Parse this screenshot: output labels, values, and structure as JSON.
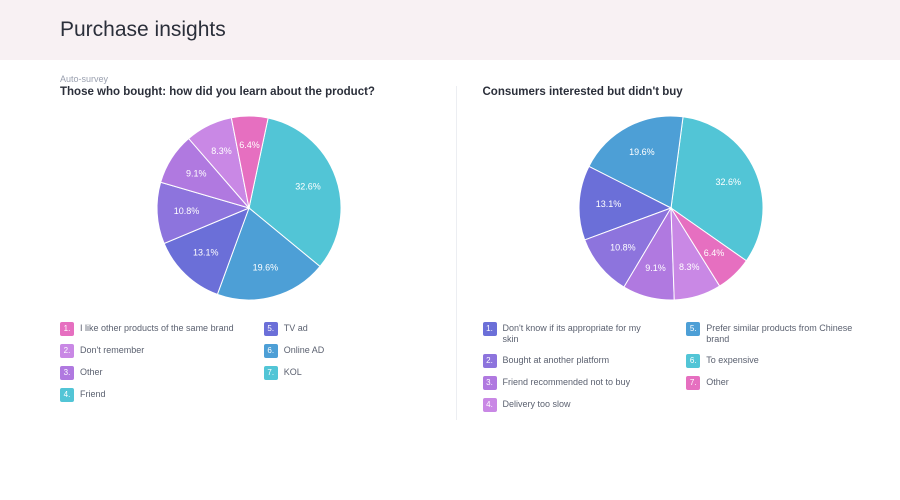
{
  "header": {
    "title": "Purchase insights"
  },
  "subtitle": "Auto-survey",
  "panels": [
    {
      "id": "bought",
      "title": "Those who bought: how did you learn about the product?",
      "pie": {
        "type": "pie",
        "radius": 92,
        "start_angle_deg": -78,
        "direction": "clockwise",
        "stroke": "#ffffff",
        "stroke_width": 1,
        "label_radius_factor": 0.68,
        "slices": [
          {
            "value": 32.6,
            "color": "#52c5d6",
            "label": "32.6%"
          },
          {
            "value": 19.6,
            "color": "#4d9fd6",
            "label": "19.6%"
          },
          {
            "value": 13.1,
            "color": "#6b6fd8",
            "label": "13.1%"
          },
          {
            "value": 10.8,
            "color": "#8d74dd",
            "label": "10.8%"
          },
          {
            "value": 9.1,
            "color": "#b079e0",
            "label": "9.1%"
          },
          {
            "value": 8.3,
            "color": "#c988e5",
            "label": "8.3%"
          },
          {
            "value": 6.4,
            "color": "#e66fc0",
            "label": "6.4%"
          }
        ]
      },
      "legend_cols": [
        [
          {
            "num": "1.",
            "label": "I like other products of the same brand",
            "color": "#e66fc0"
          },
          {
            "num": "2.",
            "label": "Don't remember",
            "color": "#c988e5"
          },
          {
            "num": "3.",
            "label": "Other",
            "color": "#b079e0"
          },
          {
            "num": "4.",
            "label": "Friend",
            "color": "#52c5d6"
          }
        ],
        [
          {
            "num": "5.",
            "label": "TV ad",
            "color": "#6b6fd8"
          },
          {
            "num": "6.",
            "label": "Online AD",
            "color": "#4d9fd6"
          },
          {
            "num": "7.",
            "label": "KOL",
            "color": "#52c5d6"
          }
        ]
      ]
    },
    {
      "id": "interested",
      "title": "Consumers interested but didn't buy",
      "pie": {
        "type": "pie",
        "radius": 92,
        "start_angle_deg": 35,
        "direction": "counterclockwise",
        "stroke": "#ffffff",
        "stroke_width": 1,
        "label_radius_factor": 0.68,
        "slices": [
          {
            "value": 32.6,
            "color": "#52c5d6",
            "label": "32.6%"
          },
          {
            "value": 19.6,
            "color": "#4d9fd6",
            "label": "19.6%"
          },
          {
            "value": 13.1,
            "color": "#6b6fd8",
            "label": "13.1%"
          },
          {
            "value": 10.8,
            "color": "#8d74dd",
            "label": "10.8%"
          },
          {
            "value": 9.1,
            "color": "#b079e0",
            "label": "9.1%"
          },
          {
            "value": 8.3,
            "color": "#c988e5",
            "label": "8.3%"
          },
          {
            "value": 6.4,
            "color": "#e66fc0",
            "label": "6.4%"
          }
        ]
      },
      "legend_cols": [
        [
          {
            "num": "1.",
            "label": "Don't know if its appropriate for my skin",
            "color": "#6b6fd8"
          },
          {
            "num": "2.",
            "label": "Bought at another platform",
            "color": "#8d74dd"
          },
          {
            "num": "3.",
            "label": "Friend recommended not to buy",
            "color": "#b079e0"
          },
          {
            "num": "4.",
            "label": "Delivery too slow",
            "color": "#c988e5"
          }
        ],
        [
          {
            "num": "5.",
            "label": "Prefer similar products from Chinese brand",
            "color": "#4d9fd6"
          },
          {
            "num": "6.",
            "label": "To expensive",
            "color": "#52c5d6"
          },
          {
            "num": "7.",
            "label": "Other",
            "color": "#e66fc0"
          }
        ]
      ]
    }
  ],
  "layout": {
    "background": "#ffffff",
    "header_band_bg": "#f8f1f3",
    "text_color": "#2b2f3a",
    "muted_color": "#9aa0af",
    "divider_color": "#eceef2",
    "badge_text_color": "#ffffff",
    "pie_svg_size": 200
  }
}
